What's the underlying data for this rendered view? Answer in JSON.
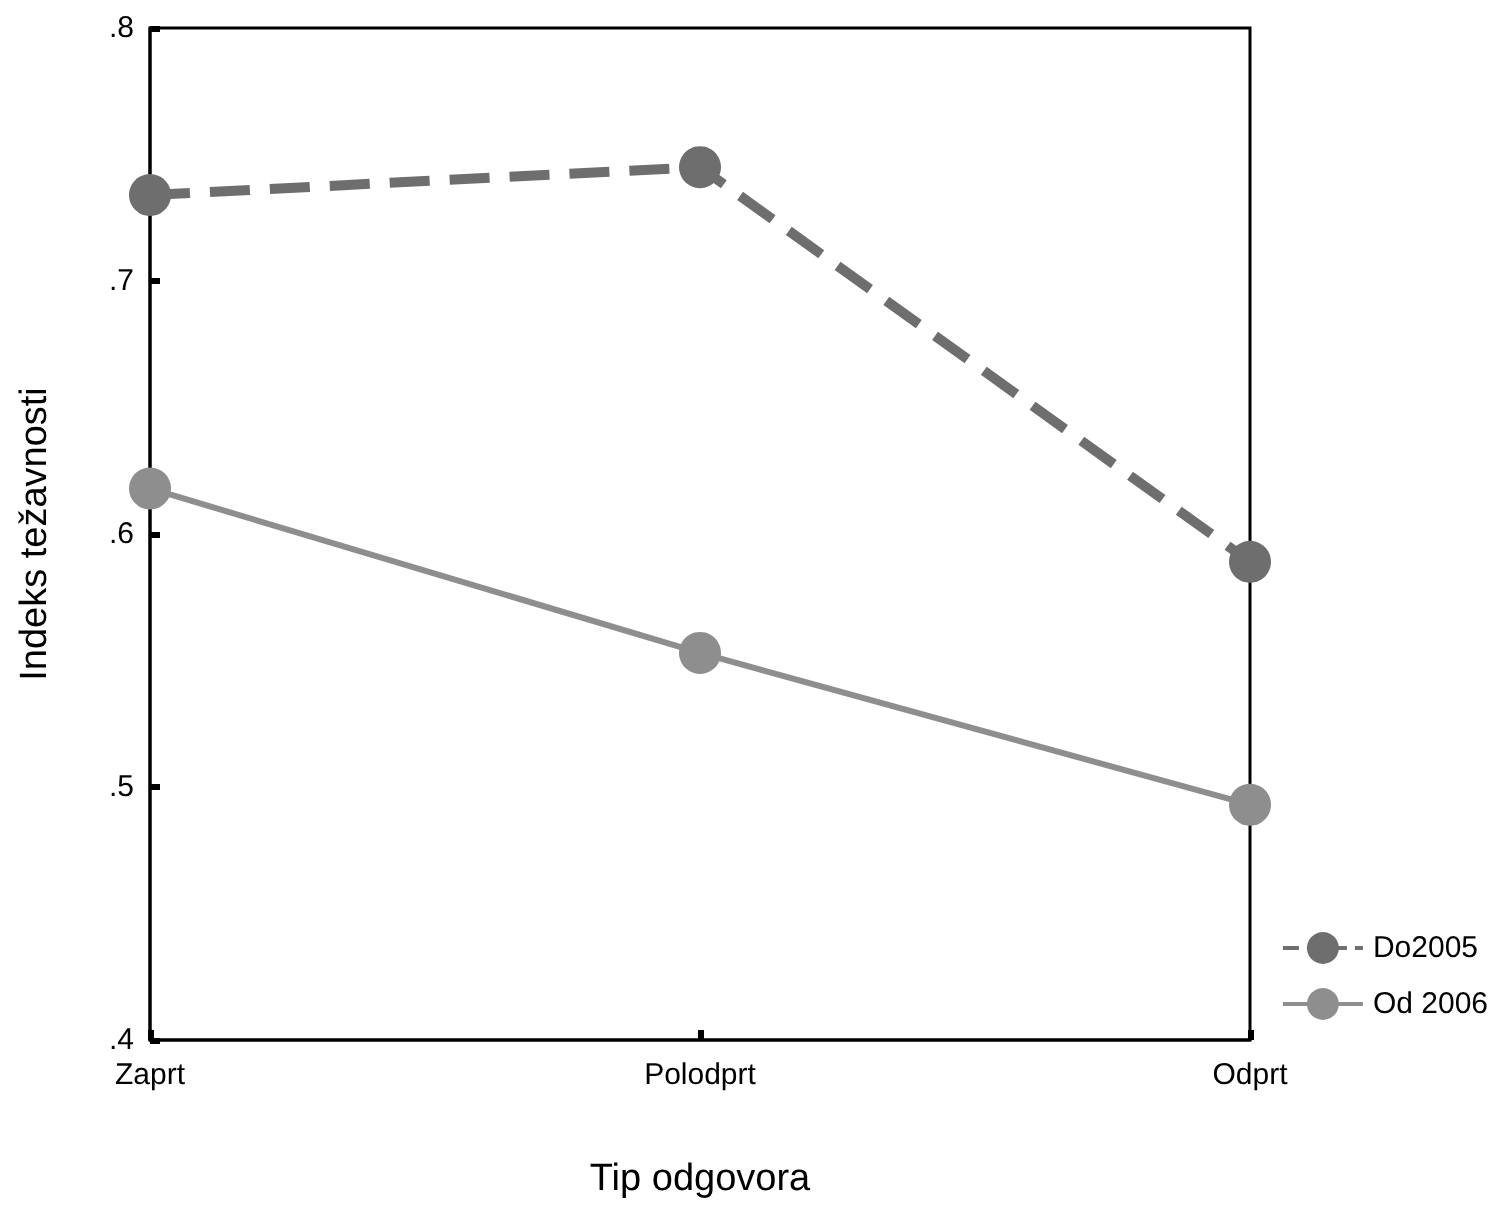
{
  "chart_data": {
    "type": "line",
    "xlabel": "Tip odgovora",
    "ylabel": "Indeks težavnosti",
    "categories": [
      "Zaprt",
      "Polodprt",
      "Odprt"
    ],
    "series": [
      {
        "name": "Do2005",
        "color": "#6e6e6e",
        "line_style": "dashed",
        "values": [
          0.734,
          0.745,
          0.589
        ]
      },
      {
        "name": "Od 2006",
        "color": "#8e8e8e",
        "line_style": "solid",
        "values": [
          0.618,
          0.553,
          0.493
        ]
      }
    ],
    "ylim": [
      0.4,
      0.8
    ],
    "yticks": [
      {
        "value": 0.4,
        "label": ".4"
      },
      {
        "value": 0.5,
        "label": ".5"
      },
      {
        "value": 0.6,
        "label": ".6"
      },
      {
        "value": 0.7,
        "label": ".7"
      },
      {
        "value": 0.8,
        "label": ".8"
      }
    ],
    "marker": "circle",
    "grid": false,
    "legend": "bottom right"
  }
}
